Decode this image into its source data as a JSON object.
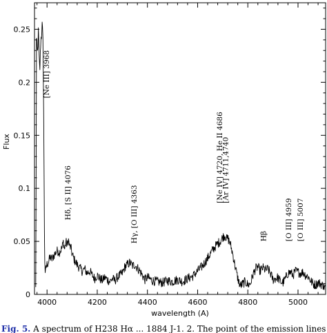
{
  "chart_data": {
    "type": "line",
    "title": "",
    "xlabel": "wavelength (A)",
    "ylabel": "Flux",
    "xlim": [
      3950,
      5110
    ],
    "ylim": [
      0,
      0.275
    ],
    "xticks": [
      4000,
      4200,
      4400,
      4600,
      4800,
      5000
    ],
    "xtick_labels": [
      "4000",
      "4200",
      "4400",
      "4600",
      "4800",
      "5000"
    ],
    "yticks": [
      0,
      0.05,
      0.1,
      0.15,
      0.2,
      0.25
    ],
    "ytick_labels": [
      "0",
      "0.05",
      "0.1",
      "0.15",
      "0.2",
      "0.25"
    ],
    "grid": false,
    "legend": "none",
    "line_color": "#000000",
    "series": [
      {
        "x": [
          3955,
          3958,
          3962,
          3966,
          3968,
          3971,
          3975,
          3978,
          3981,
          3984,
          3986,
          3988,
          3990,
          3993,
          3996,
          3999,
          4005,
          4012,
          4020,
          4030,
          4040,
          4050,
          4060,
          4065,
          4070,
          4075,
          4080,
          4085,
          4090,
          4095,
          4100,
          4105,
          4110,
          4120,
          4130,
          4140,
          4150,
          4160,
          4170,
          4180,
          4190,
          4200,
          4210,
          4220,
          4230,
          4240,
          4250,
          4260,
          4270,
          4280,
          4290,
          4300,
          4310,
          4320,
          4330,
          4340,
          4350,
          4360,
          4370,
          4380,
          4390,
          4400,
          4420,
          4440,
          4460,
          4480,
          4500,
          4520,
          4540,
          4560,
          4580,
          4600,
          4620,
          4640,
          4660,
          4670,
          4680,
          4690,
          4700,
          4705,
          4710,
          4715,
          4720,
          4730,
          4740,
          4750,
          4760,
          4770,
          4780,
          4790,
          4800,
          4810,
          4820,
          4830,
          4840,
          4850,
          4860,
          4870,
          4880,
          4890,
          4900,
          4910,
          4920,
          4930,
          4940,
          4950,
          4960,
          4970,
          4980,
          4990,
          5000,
          5010,
          5020,
          5030,
          5040,
          5050,
          5060,
          5070,
          5080,
          5090,
          5100,
          5110
        ],
        "y": [
          0.005,
          0.24,
          0.225,
          0.25,
          0.225,
          0.21,
          0.24,
          0.245,
          0.255,
          0.235,
          0.19,
          0.12,
          0.04,
          0.018,
          0.025,
          0.028,
          0.03,
          0.035,
          0.033,
          0.038,
          0.041,
          0.04,
          0.044,
          0.05,
          0.042,
          0.05,
          0.046,
          0.052,
          0.045,
          0.044,
          0.038,
          0.035,
          0.032,
          0.028,
          0.025,
          0.022,
          0.024,
          0.02,
          0.022,
          0.018,
          0.015,
          0.018,
          0.015,
          0.013,
          0.016,
          0.014,
          0.012,
          0.015,
          0.013,
          0.016,
          0.018,
          0.02,
          0.026,
          0.028,
          0.03,
          0.027,
          0.028,
          0.025,
          0.022,
          0.018,
          0.014,
          0.016,
          0.013,
          0.012,
          0.011,
          0.013,
          0.012,
          0.014,
          0.012,
          0.015,
          0.017,
          0.022,
          0.027,
          0.034,
          0.042,
          0.045,
          0.048,
          0.05,
          0.054,
          0.055,
          0.056,
          0.052,
          0.053,
          0.048,
          0.038,
          0.026,
          0.015,
          0.008,
          0.01,
          0.012,
          0.009,
          0.01,
          0.018,
          0.024,
          0.026,
          0.022,
          0.025,
          0.023,
          0.024,
          0.02,
          0.014,
          0.015,
          0.016,
          0.012,
          0.011,
          0.015,
          0.02,
          0.021,
          0.018,
          0.022,
          0.021,
          0.02,
          0.021,
          0.018,
          0.017,
          0.013,
          0.01,
          0.009,
          0.011,
          0.01,
          0.008,
          0.006
        ]
      }
    ],
    "annotations": [
      {
        "text": "[Ne III] 3968",
        "x": 3997,
        "y": 0.185
      },
      {
        "text": "Hδ, [S II] 4076",
        "x": 4082,
        "y": 0.07
      },
      {
        "text": "Hγ, [O III] 4363",
        "x": 4346,
        "y": 0.048
      },
      {
        "text": "[Ne IV] 4720, He II 4686",
        "x": 4686,
        "y": 0.086
      },
      {
        "text": "[Ar IV] 4711,4740",
        "x": 4710,
        "y": 0.086
      },
      {
        "text": "Hβ",
        "x": 4861,
        "y": 0.05
      },
      {
        "text": "[O III] 4959",
        "x": 4962,
        "y": 0.05
      },
      {
        "text": "[O III] 5007",
        "x": 5008,
        "y": 0.05
      }
    ]
  },
  "caption": {
    "label": "Fig. 5.",
    "text": " A spectrum of H238 Hα ... 1884 J-1. 2. The point of the emission lines"
  }
}
